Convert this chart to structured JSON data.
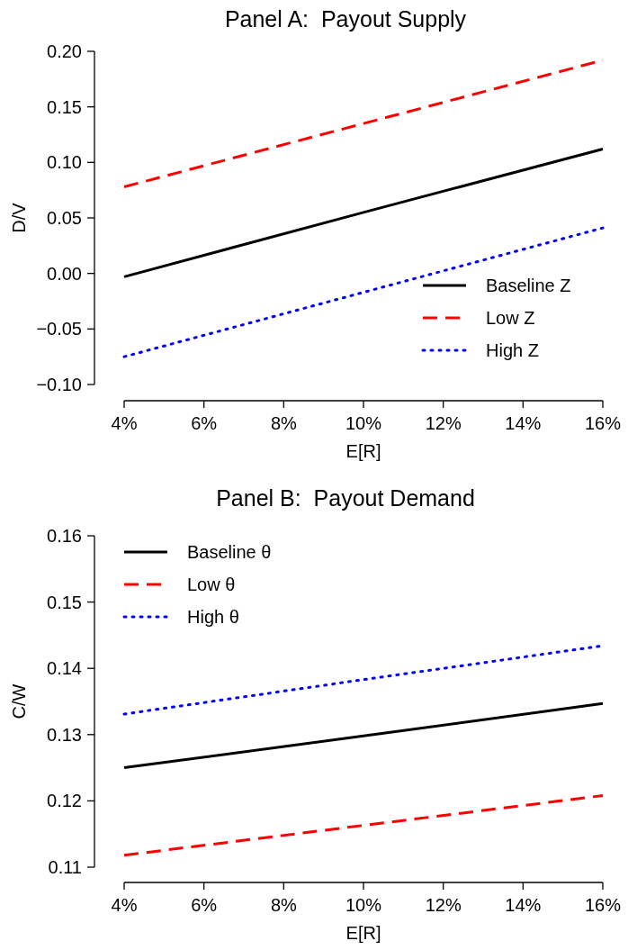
{
  "chart_data": [
    {
      "type": "line",
      "title": "Panel A:  Payout Supply",
      "xlabel": "E[R]",
      "ylabel": "D/V",
      "xlim": [
        4,
        16
      ],
      "xticks": [
        {
          "value": 4,
          "label": "4%"
        },
        {
          "value": 6,
          "label": "6%"
        },
        {
          "value": 8,
          "label": "8%"
        },
        {
          "value": 10,
          "label": "10%"
        },
        {
          "value": 12,
          "label": "12%"
        },
        {
          "value": 14,
          "label": "14%"
        },
        {
          "value": 16,
          "label": "16%"
        }
      ],
      "ylim": [
        -0.1,
        0.2
      ],
      "yticks": [
        {
          "value": -0.1,
          "label": "−0.10"
        },
        {
          "value": -0.05,
          "label": "−0.05"
        },
        {
          "value": 0,
          "label": "0.00"
        },
        {
          "value": 0.05,
          "label": "0.05"
        },
        {
          "value": 0.1,
          "label": "0.10"
        },
        {
          "value": 0.15,
          "label": "0.15"
        },
        {
          "value": 0.2,
          "label": "0.20"
        }
      ],
      "legend": "bottom right",
      "grid": false,
      "marker": "none",
      "series": [
        {
          "name": "Baseline Z",
          "color": "#000000",
          "line_style": "solid",
          "x": [
            4,
            10,
            16
          ],
          "values": [
            -0.003,
            0.055,
            0.112
          ]
        },
        {
          "name": "Low Z",
          "color": "#ff0000",
          "line_style": "dashed",
          "x": [
            4,
            10,
            16
          ],
          "values": [
            0.078,
            0.135,
            0.192
          ]
        },
        {
          "name": "High Z",
          "color": "#0000ff",
          "line_style": "dotted",
          "x": [
            4,
            10,
            16
          ],
          "values": [
            -0.075,
            -0.017,
            0.041
          ]
        }
      ]
    },
    {
      "type": "line",
      "title": "Panel B:  Payout Demand",
      "xlabel": "E[R]",
      "ylabel": "C/W",
      "xlim": [
        4,
        16
      ],
      "xticks": [
        {
          "value": 4,
          "label": "4%"
        },
        {
          "value": 6,
          "label": "6%"
        },
        {
          "value": 8,
          "label": "8%"
        },
        {
          "value": 10,
          "label": "10%"
        },
        {
          "value": 12,
          "label": "12%"
        },
        {
          "value": 14,
          "label": "14%"
        },
        {
          "value": 16,
          "label": "16%"
        }
      ],
      "ylim": [
        0.11,
        0.16
      ],
      "yticks": [
        {
          "value": 0.11,
          "label": "0.11"
        },
        {
          "value": 0.12,
          "label": "0.12"
        },
        {
          "value": 0.13,
          "label": "0.13"
        },
        {
          "value": 0.14,
          "label": "0.14"
        },
        {
          "value": 0.15,
          "label": "0.15"
        },
        {
          "value": 0.16,
          "label": "0.16"
        }
      ],
      "legend": "top left",
      "grid": false,
      "marker": "none",
      "series": [
        {
          "name": "Baseline θ",
          "color": "#000000",
          "line_style": "solid",
          "x": [
            4,
            10,
            16
          ],
          "values": [
            0.125,
            0.1298,
            0.1347
          ]
        },
        {
          "name": "Low θ",
          "color": "#ff0000",
          "line_style": "dashed",
          "x": [
            4,
            10,
            16
          ],
          "values": [
            0.1118,
            0.1163,
            0.1208
          ]
        },
        {
          "name": "High θ",
          "color": "#0000ff",
          "line_style": "dotted",
          "x": [
            4,
            10,
            16
          ],
          "values": [
            0.1331,
            0.1383,
            0.1434
          ]
        }
      ]
    }
  ]
}
